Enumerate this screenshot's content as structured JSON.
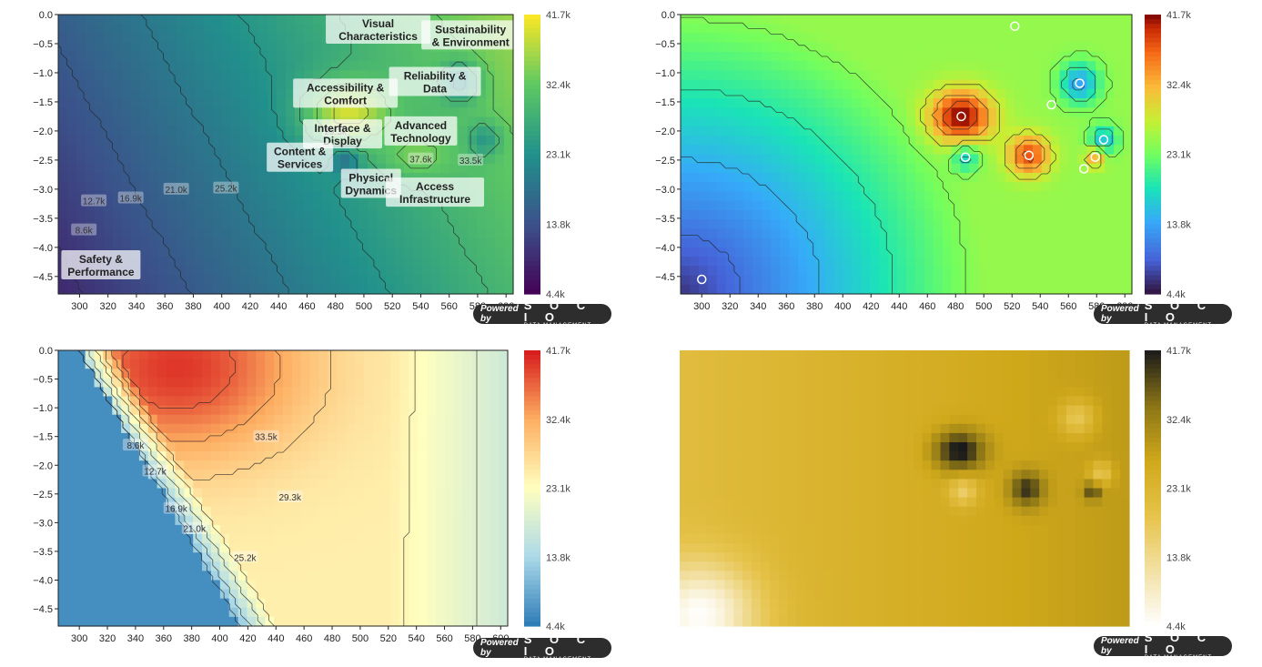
{
  "colorbar_ticks": [
    "41.7k",
    "32.4k",
    "23.1k",
    "13.8k",
    "4.4k"
  ],
  "x_ticks": [
    "300",
    "320",
    "340",
    "360",
    "380",
    "400",
    "420",
    "440",
    "460",
    "480",
    "500",
    "520",
    "540",
    "560",
    "580",
    "600"
  ],
  "y_ticks": [
    "0.0",
    "−0.5",
    "−1.0",
    "−1.5",
    "−2.0",
    "−2.5",
    "−3.0",
    "−3.5",
    "−4.0",
    "−4.5"
  ],
  "badge": {
    "powered": "Powered by",
    "brand": "S O C I O",
    "sub": "DATA MANAGEMENT"
  },
  "chart_data": [
    {
      "type": "heatmap",
      "panel": "top-left",
      "colormap": "viridis",
      "xlim": [
        285,
        605
      ],
      "ylim": [
        -4.8,
        0.0
      ],
      "zlim": [
        4400,
        41700
      ],
      "contour_labels": [
        "8.6k",
        "12.7k",
        "16.9k",
        "21.0k",
        "25.2k",
        "29.3k",
        "33.5k",
        "37.6k"
      ],
      "categories": [
        {
          "name": "Visual\nCharacteristics",
          "x": 510,
          "y": -0.25
        },
        {
          "name": "Sustainability\n& Environment",
          "x": 575,
          "y": -0.35
        },
        {
          "name": "Reliability &\nData",
          "x": 550,
          "y": -1.15
        },
        {
          "name": "Accessibility &\nComfort",
          "x": 487,
          "y": -1.35
        },
        {
          "name": "Advanced\nTechnology",
          "x": 540,
          "y": -2.0
        },
        {
          "name": "Interface &\nDisplay",
          "x": 485,
          "y": -2.05
        },
        {
          "name": "Content &\nServices",
          "x": 455,
          "y": -2.45
        },
        {
          "name": "Physical\nDynamics",
          "x": 505,
          "y": -2.9
        },
        {
          "name": "Access\nInfrastructure",
          "x": 550,
          "y": -3.05
        },
        {
          "name": "Safety &\nPerformance",
          "x": 315,
          "y": -4.3
        }
      ]
    },
    {
      "type": "heatmap",
      "panel": "top-right",
      "colormap": "turbo",
      "xlim": [
        285,
        605
      ],
      "ylim": [
        -4.8,
        0.0
      ],
      "zlim": [
        4400,
        41700
      ],
      "points": [
        {
          "x": 300,
          "y": -4.55
        },
        {
          "x": 484,
          "y": -1.75
        },
        {
          "x": 487,
          "y": -2.45
        },
        {
          "x": 522,
          "y": -0.2
        },
        {
          "x": 532,
          "y": -2.42
        },
        {
          "x": 548,
          "y": -1.55
        },
        {
          "x": 568,
          "y": -1.18
        },
        {
          "x": 571,
          "y": -2.65
        },
        {
          "x": 579,
          "y": -2.45
        },
        {
          "x": 585,
          "y": -2.15
        }
      ]
    },
    {
      "type": "heatmap",
      "panel": "bottom-left",
      "colormap": "RdYlBu_r",
      "xlim": [
        285,
        605
      ],
      "ylim": [
        -4.8,
        0.0
      ],
      "zlim": [
        4400,
        41700
      ],
      "contour_labels": [
        "8.6k",
        "12.7k",
        "16.9k",
        "21.0k",
        "25.2k",
        "29.3k",
        "33.5k"
      ]
    },
    {
      "type": "heatmap",
      "panel": "bottom-right",
      "colormap": "white-gold-black",
      "xlim": [
        285,
        605
      ],
      "ylim": [
        -4.8,
        0.0
      ],
      "zlim": [
        4400,
        41700
      ]
    }
  ]
}
